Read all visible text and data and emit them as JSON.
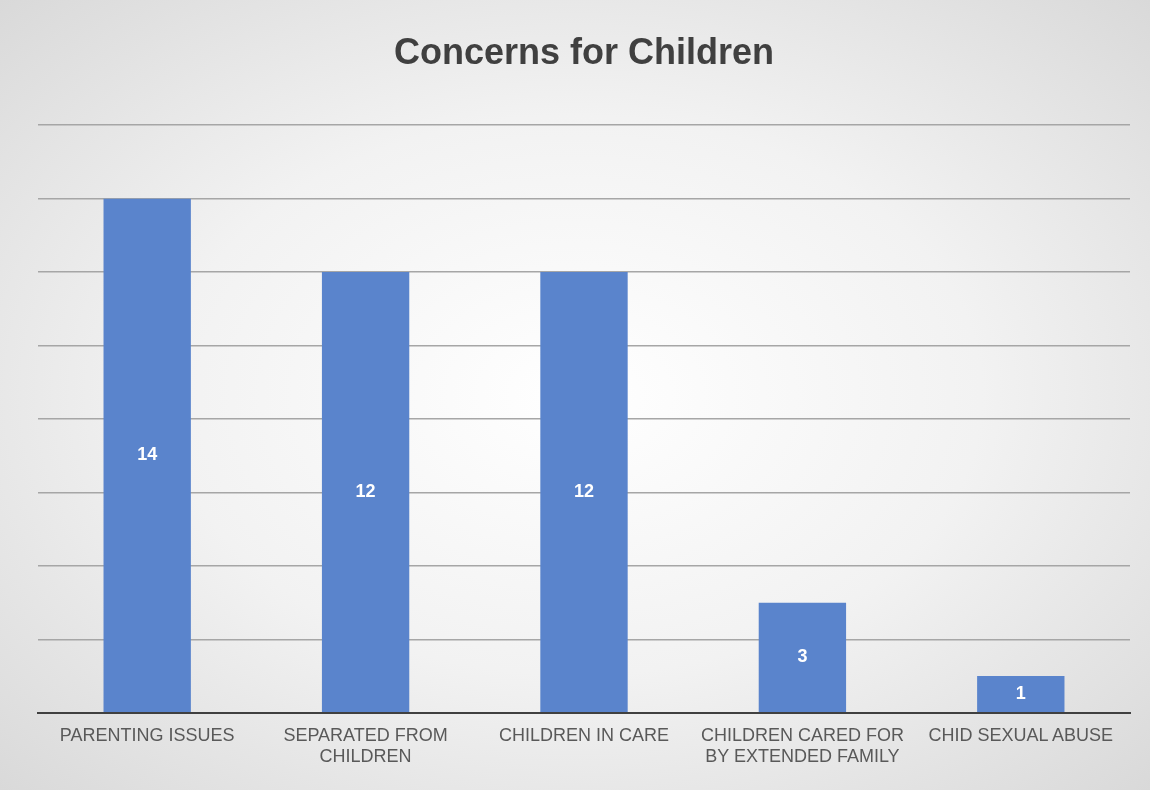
{
  "chart_data": {
    "type": "bar",
    "title": "Concerns for Children",
    "categories": [
      "PARENTING ISSUES",
      "SEPARATED FROM CHILDREN",
      "CHILDREN IN CARE",
      "CHILDREN CARED FOR BY EXTENDED FAMILY",
      "CHID SEXUAL ABUSE"
    ],
    "values": [
      14,
      12,
      12,
      3,
      1
    ],
    "color": "#5a84cc",
    "ylim": [
      0,
      16
    ],
    "yticks": [
      {
        "value": 0,
        "label": null
      },
      {
        "value": 2,
        "label": null
      },
      {
        "value": 4,
        "label": null
      },
      {
        "value": 6,
        "label": null
      },
      {
        "value": 8,
        "label": null
      },
      {
        "value": 10,
        "label": null
      },
      {
        "value": 12,
        "label": null
      },
      {
        "value": 14,
        "label": null
      },
      {
        "value": 16,
        "label": null
      }
    ],
    "grid": "y",
    "tick_labels": "x",
    "data_labels": true,
    "legend": false
  }
}
